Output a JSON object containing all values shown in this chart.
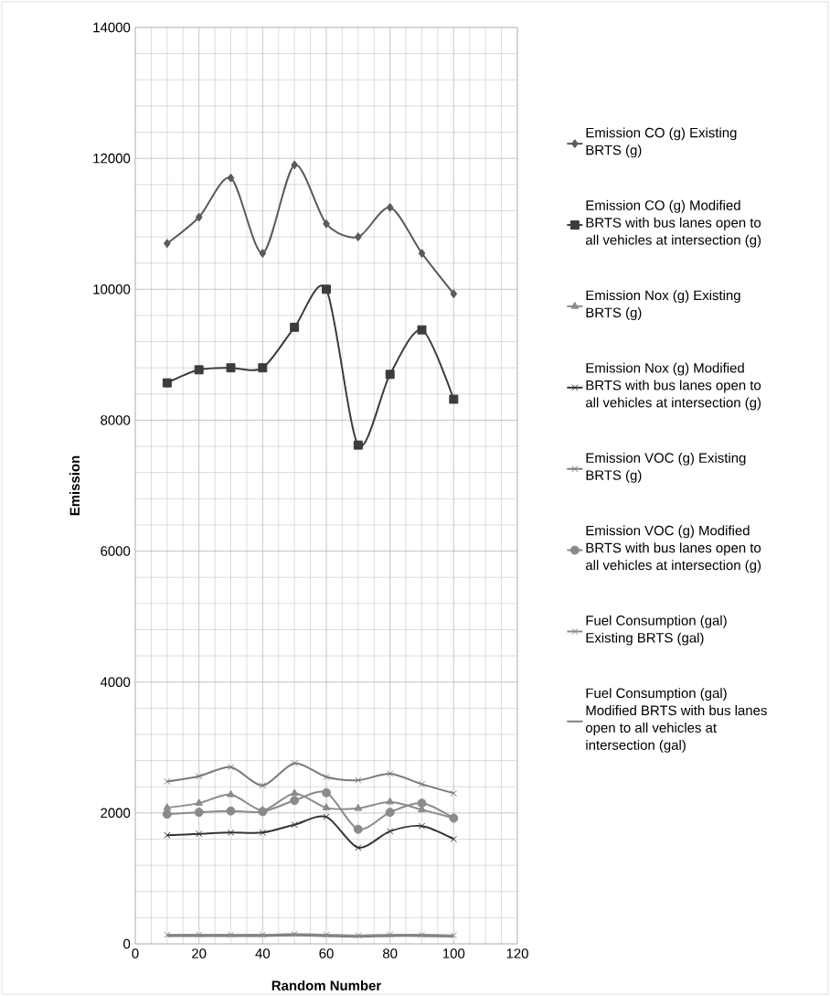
{
  "chart_data": {
    "type": "line",
    "xlabel": "Random Number",
    "ylabel": "Emission",
    "x": [
      10,
      20,
      30,
      40,
      50,
      60,
      70,
      80,
      90,
      100
    ],
    "xlim": [
      0,
      120
    ],
    "xticks": [
      0,
      20,
      40,
      60,
      80,
      100,
      120
    ],
    "ylim": [
      0,
      14000
    ],
    "yticks": [
      0,
      2000,
      4000,
      6000,
      8000,
      10000,
      12000,
      14000
    ],
    "grid": true,
    "legend": "right",
    "line_style": "solid",
    "series": [
      {
        "name": "Emission CO (g) Existing BRTS (g)",
        "color": "#5a5a5a",
        "marker": "diamond",
        "values": [
          10700,
          11100,
          11700,
          10550,
          11900,
          11000,
          10800,
          11250,
          10550,
          9930
        ]
      },
      {
        "name": "Emission CO (g) Modified BRTS with bus lanes open to all vehicles at intersection (g)",
        "color": "#3c3c3c",
        "marker": "square",
        "values": [
          8570,
          8770,
          8800,
          8800,
          9420,
          10000,
          7620,
          8700,
          9380,
          8320
        ]
      },
      {
        "name": "Emission Nox (g) Existing BRTS (g)",
        "color": "#8c8c8c",
        "marker": "triangle",
        "values": [
          2080,
          2150,
          2280,
          2040,
          2300,
          2080,
          2070,
          2170,
          2050,
          1920
        ]
      },
      {
        "name": "Emission Nox (g) Modified BRTS with bus lanes open to all vehicles at intersection (g)",
        "color": "#333333",
        "marker": "cross",
        "values": [
          1660,
          1680,
          1700,
          1700,
          1820,
          1940,
          1470,
          1720,
          1800,
          1600
        ]
      },
      {
        "name": "Emission VOC (g) Existing BRTS (g)",
        "color": "#7a7a7a",
        "marker": "cross",
        "values": [
          2480,
          2560,
          2700,
          2420,
          2760,
          2550,
          2500,
          2600,
          2440,
          2300
        ]
      },
      {
        "name": "Emission VOC (g) Modified BRTS with bus lanes open to all vehicles at intersection (g)",
        "color": "#8a8a8a",
        "marker": "circle",
        "values": [
          1980,
          2010,
          2030,
          2020,
          2190,
          2310,
          1750,
          2010,
          2150,
          1920
        ]
      },
      {
        "name": "Fuel Consumption (gal) Existing BRTS (gal)",
        "color": "#8c8c8c",
        "marker": "cross",
        "values": [
          140,
          140,
          140,
          140,
          150,
          140,
          130,
          140,
          140,
          130
        ]
      },
      {
        "name": "Fuel Consumption (gal) Modified BRTS with bus lanes open to all vehicles at intersection (gal)",
        "color": "#7f7f7f",
        "marker": "none",
        "values": [
          120,
          120,
          120,
          120,
          130,
          120,
          110,
          120,
          120,
          110
        ]
      }
    ]
  }
}
